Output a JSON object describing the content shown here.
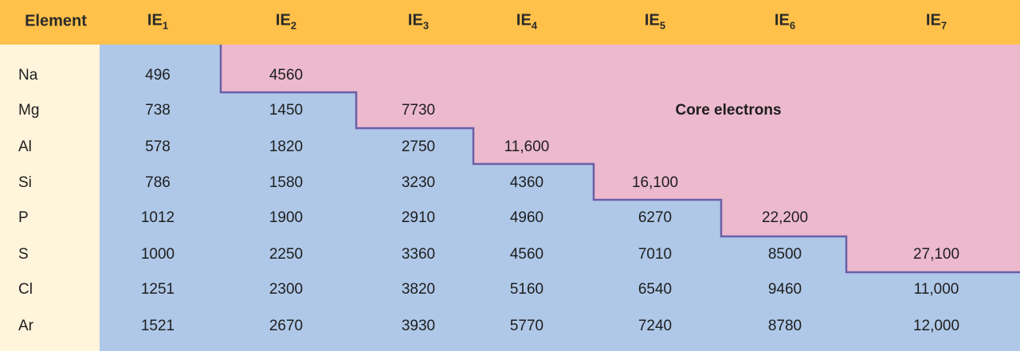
{
  "header": {
    "element": "Element",
    "ie_prefix": "IE",
    "columns": [
      "1",
      "2",
      "3",
      "4",
      "5",
      "6",
      "7"
    ]
  },
  "core_label": "Core electrons",
  "colors": {
    "header": "#ffc14a",
    "element_column": "#fff4dc",
    "valence": "#afc8e8",
    "core": "#ecb9cd",
    "boundary": "#6a5fa6"
  },
  "rows": [
    {
      "element": "Na",
      "values": [
        "496",
        "4560",
        "",
        "",
        "",
        "",
        ""
      ]
    },
    {
      "element": "Mg",
      "values": [
        "738",
        "1450",
        "7730",
        "",
        "",
        "",
        ""
      ]
    },
    {
      "element": "Al",
      "values": [
        "578",
        "1820",
        "2750",
        "11,600",
        "",
        "",
        ""
      ]
    },
    {
      "element": "Si",
      "values": [
        "786",
        "1580",
        "3230",
        "4360",
        "16,100",
        "",
        ""
      ]
    },
    {
      "element": "P",
      "values": [
        "1012",
        "1900",
        "2910",
        "4960",
        "6270",
        "22,200",
        ""
      ]
    },
    {
      "element": "S",
      "values": [
        "1000",
        "2250",
        "3360",
        "4560",
        "7010",
        "8500",
        "27,100"
      ]
    },
    {
      "element": "Cl",
      "values": [
        "1251",
        "2300",
        "3820",
        "5160",
        "6540",
        "9460",
        "11,000"
      ]
    },
    {
      "element": "Ar",
      "values": [
        "1521",
        "2670",
        "3930",
        "5770",
        "7240",
        "8780",
        "12,000"
      ]
    }
  ]
}
